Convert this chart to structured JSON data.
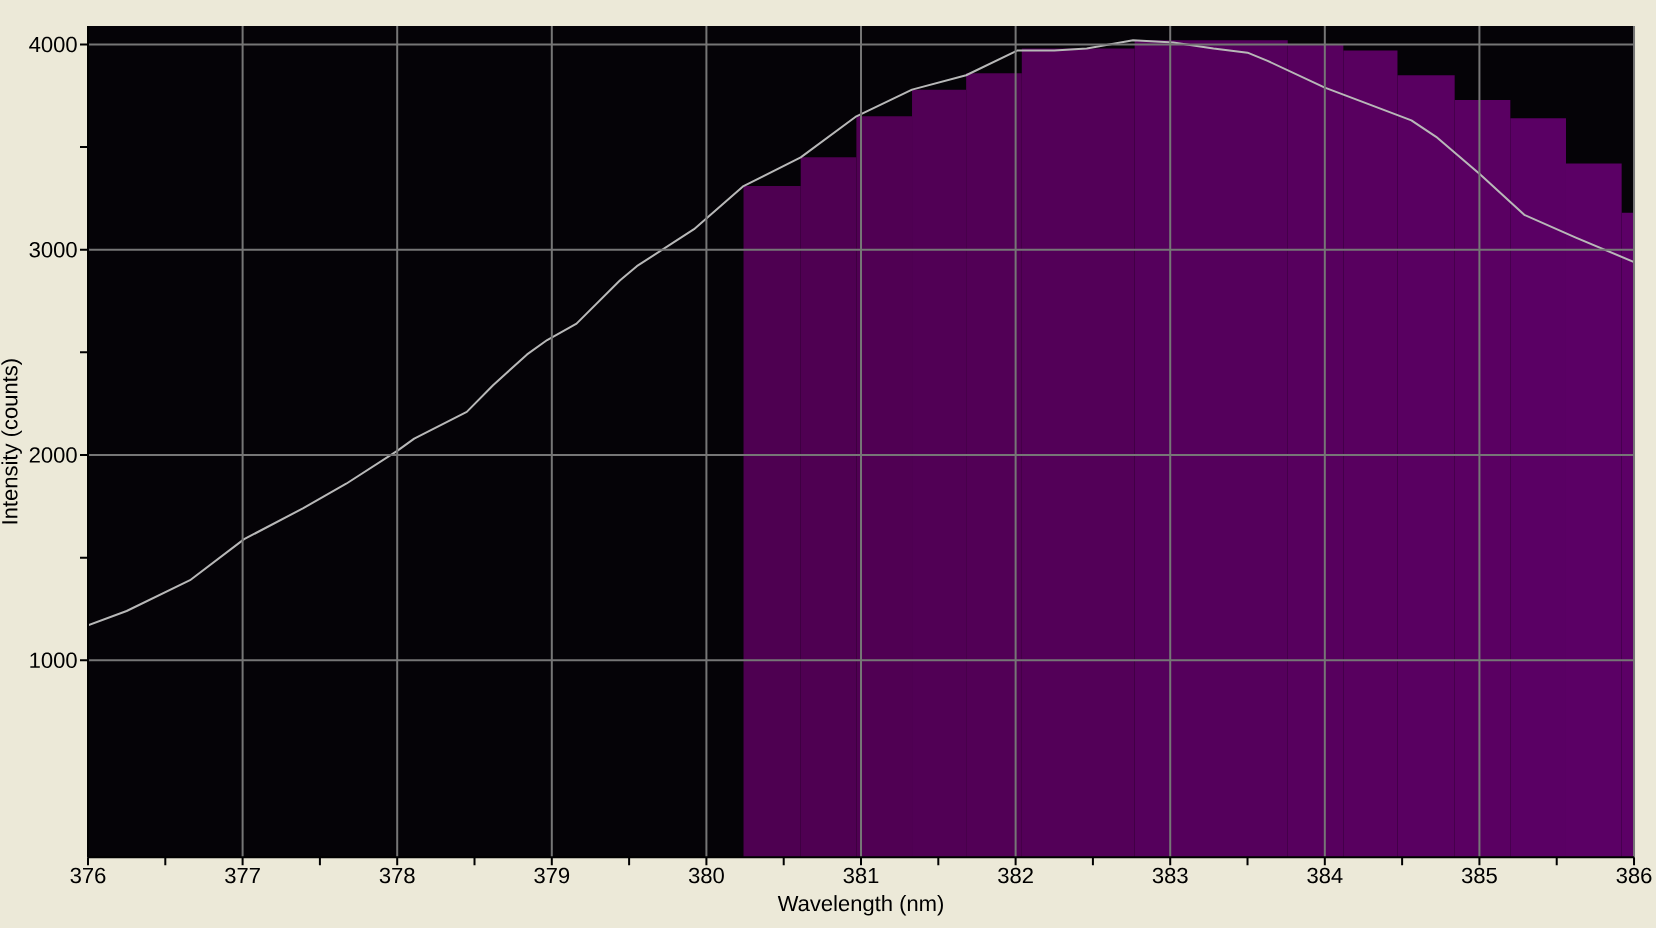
{
  "chart_data": {
    "type": "line",
    "xlabel": "Wavelength (nm)",
    "ylabel": "Intensity (counts)",
    "xlim": [
      376,
      386
    ],
    "ylim": [
      40,
      4090
    ],
    "xticks": [
      376,
      {
        "value": 376.5,
        "label": null
      },
      377,
      {
        "value": 377.5,
        "label": null
      },
      378,
      {
        "value": 378.5,
        "label": null
      },
      379,
      {
        "value": 379.5,
        "label": null
      },
      380,
      {
        "value": 380.5,
        "label": null
      },
      381,
      {
        "value": 381.5,
        "label": null
      },
      382,
      {
        "value": 382.5,
        "label": null
      },
      383,
      {
        "value": 383.5,
        "label": null
      },
      384,
      {
        "value": 384.5,
        "label": null
      },
      385,
      {
        "value": 385.5,
        "label": null
      },
      386
    ],
    "yticks": [
      1000,
      {
        "value": 1500,
        "label": null
      },
      2000,
      {
        "value": 2500,
        "label": null
      },
      3000,
      {
        "value": 3500,
        "label": null
      },
      4000
    ],
    "grid": true,
    "series": [
      {
        "type": "histogram",
        "bins": [
          380.24,
          380.61,
          380.97,
          381.33,
          381.68,
          382.04,
          382.77,
          383.76,
          384.12,
          384.47,
          384.84,
          385.2,
          385.56,
          385.92,
          386.0
        ],
        "values": [
          3310,
          3450,
          3650,
          3780,
          3860,
          3980,
          4020,
          4000,
          3970,
          3850,
          3730,
          3640,
          3420,
          3180
        ],
        "colors": [
          "#4e0051",
          "#4f0052",
          "#500053",
          "#510055",
          "#520056",
          "#530058",
          "#55005c",
          "#57005e",
          "#58005f",
          "#590061",
          "#5a0062",
          "#5a0064",
          "#5b0065",
          "#5c0066"
        ]
      },
      {
        "color": "#b8b8b8",
        "x": [
          376.0,
          376.25,
          376.66,
          377.01,
          377.39,
          377.67,
          378.0,
          378.11,
          378.45,
          378.62,
          378.84,
          378.97,
          379.16,
          379.44,
          379.55,
          379.92,
          380.24,
          380.61,
          380.97,
          381.33,
          381.68,
          382.01,
          382.25,
          382.46,
          382.76,
          383.02,
          383.28,
          383.5,
          383.63,
          384.0,
          384.21,
          384.56,
          384.72,
          385.0,
          385.29,
          385.62,
          386.0
        ],
        "values": [
          1170,
          1240,
          1390,
          1590,
          1740,
          1860,
          2020,
          2080,
          2210,
          2340,
          2490,
          2560,
          2640,
          2850,
          2920,
          3100,
          3310,
          3450,
          3650,
          3780,
          3850,
          3970,
          3970,
          3980,
          4020,
          4010,
          3980,
          3960,
          3920,
          3790,
          3730,
          3630,
          3550,
          3370,
          3170,
          3060,
          2940
        ]
      }
    ]
  }
}
